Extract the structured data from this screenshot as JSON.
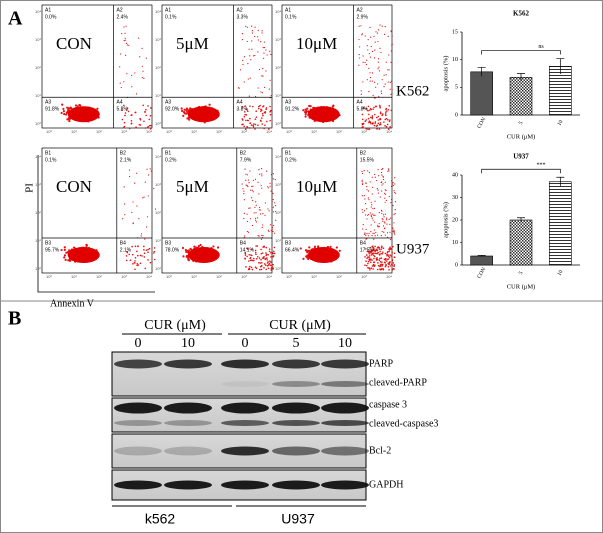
{
  "panel_a": {
    "label": "A",
    "conditions": [
      "CON",
      "5μM",
      "10μM"
    ],
    "cell_lines": [
      "K562",
      "U937"
    ],
    "flow_axis_ticks": [
      "10⁰",
      "10¹",
      "10²",
      "10³",
      "10⁴"
    ],
    "y_axis_label": "PI",
    "x_axis_label": "Annexin V",
    "flow_plots": [
      [
        {
          "q": [
            "A1",
            "A2",
            "A3",
            "A4"
          ],
          "p": [
            "0.0%",
            "2.4%",
            "91.8%",
            "5.8%"
          ]
        },
        {
          "q": [
            "A1",
            "A2",
            "A3",
            "A4"
          ],
          "p": [
            "0.1%",
            "3.3%",
            "92.0%",
            "3.8%"
          ]
        },
        {
          "q": [
            "A1",
            "A2",
            "A3",
            "A4"
          ],
          "p": [
            "0.1%",
            "2.9%",
            "91.2%",
            "5.8%"
          ]
        }
      ],
      [
        {
          "q": [
            "B1",
            "B2",
            "B3",
            "B4"
          ],
          "p": [
            "0.1%",
            "2.1%",
            "95.7%",
            "2.1%"
          ]
        },
        {
          "q": [
            "B1",
            "B2",
            "B3",
            "B4"
          ],
          "p": [
            "0.2%",
            "7.9%",
            "78.0%",
            "14.1%"
          ]
        },
        {
          "q": [
            "B1",
            "B2",
            "B3",
            "B4"
          ],
          "p": [
            "0.2%",
            "15.5%",
            "66.4%",
            "17.5%"
          ]
        }
      ]
    ],
    "bar_charts": [
      {
        "type": "bar",
        "title": "K562",
        "y_label": "apoptosis (%)",
        "x_label": "CUR (μM)",
        "categories": [
          "CON",
          "5",
          "10"
        ],
        "values": [
          7.8,
          6.8,
          8.8
        ],
        "errors": [
          0.8,
          0.7,
          1.4
        ],
        "ylim": [
          0,
          15
        ],
        "yticks": [
          0,
          5,
          10,
          15
        ],
        "annotation": "ns"
      },
      {
        "type": "bar",
        "title": "U937",
        "y_label": "apoptosis (%)",
        "x_label": "CUR (μM)",
        "categories": [
          "CON",
          "5",
          "10"
        ],
        "values": [
          4,
          20,
          37
        ],
        "errors": [
          0.3,
          1,
          2
        ],
        "ylim": [
          0,
          40
        ],
        "yticks": [
          0,
          10,
          20,
          30,
          40
        ],
        "annotation": "***"
      }
    ]
  },
  "panel_b": {
    "label": "B",
    "treatment_labels": [
      "CUR (μM)",
      "CUR (μM)"
    ],
    "lanes": [
      "0",
      "10",
      "0",
      "5",
      "10"
    ],
    "bands": [
      "PARP",
      "cleaved-PARP",
      "caspase 3",
      "cleaved-caspase3",
      "Bcl-2",
      "GAPDH"
    ],
    "cell_lines": [
      "k562",
      "U937"
    ]
  }
}
